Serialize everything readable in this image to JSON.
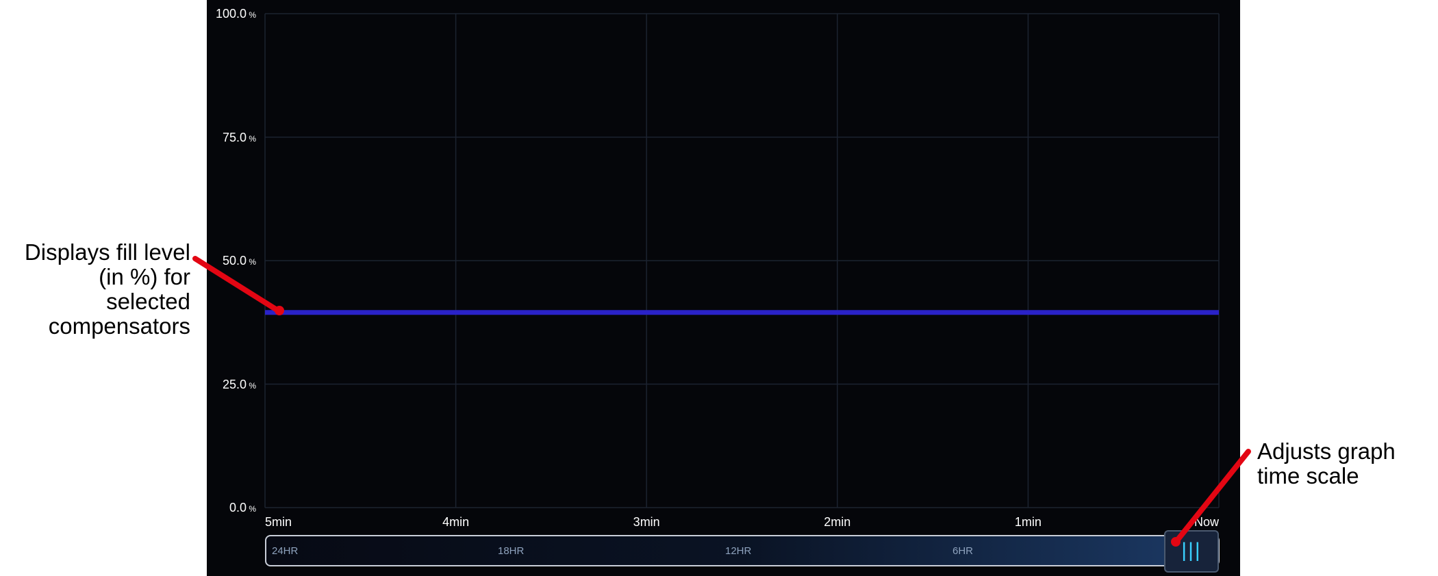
{
  "chart_data": {
    "type": "line",
    "x": [
      "5min",
      "4min",
      "3min",
      "2min",
      "1min",
      "Now"
    ],
    "series": [
      {
        "values": [
          39.5,
          39.5,
          39.5,
          39.5,
          39.5,
          39.5
        ],
        "color": "#2a22c8"
      }
    ],
    "ylim": [
      0,
      100
    ],
    "ytick_values": [
      "100.0",
      "75.0",
      "50.0",
      "25.0",
      "0.0"
    ],
    "y_unit": "%",
    "grid": true,
    "grid_color": "#1c2330",
    "background": "#05060a"
  },
  "time_scale": {
    "labels": [
      "24HR",
      "18HR",
      "12HR",
      "6HR"
    ],
    "handle_icon": "slider-grip-icon",
    "handle_glyph": "|||",
    "selected_fraction": 1.0
  },
  "annotations": {
    "fill_level": "Displays fill level (in %) for selected compensators",
    "time_scale": "Adjusts graph time scale",
    "arrow_color": "#e30613"
  }
}
